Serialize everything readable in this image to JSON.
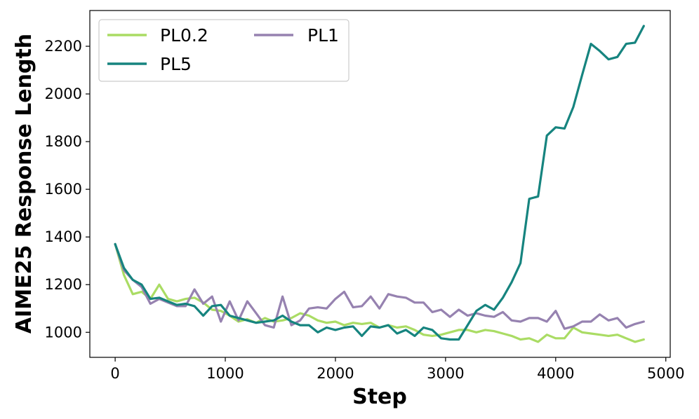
{
  "chart_data": {
    "type": "line",
    "title": "",
    "xlabel": "Step",
    "ylabel": "AIME25 Response Length",
    "xlim": [
      -230,
      5040
    ],
    "ylim": [
      895,
      2350
    ],
    "xticks": [
      0,
      1000,
      2000,
      3000,
      4000,
      5000
    ],
    "yticks": [
      1000,
      1200,
      1400,
      1600,
      1800,
      2000,
      2200
    ],
    "grid": false,
    "legend_position": "top-left",
    "legend_columns": 2,
    "x": [
      0,
      80,
      160,
      240,
      320,
      400,
      480,
      560,
      640,
      720,
      800,
      880,
      960,
      1040,
      1120,
      1200,
      1280,
      1360,
      1440,
      1520,
      1600,
      1680,
      1760,
      1840,
      1920,
      2000,
      2080,
      2160,
      2240,
      2320,
      2400,
      2480,
      2560,
      2640,
      2720,
      2800,
      2880,
      2960,
      3040,
      3120,
      3200,
      3280,
      3360,
      3440,
      3520,
      3600,
      3680,
      3760,
      3840,
      3920,
      4000,
      4080,
      4160,
      4240,
      4320,
      4400,
      4480,
      4560,
      4640,
      4720,
      4800
    ],
    "series": [
      {
        "name": "PL0.2",
        "color": "#aadc64",
        "values": [
          1370,
          1240,
          1160,
          1170,
          1140,
          1200,
          1140,
          1130,
          1140,
          1145,
          1125,
          1095,
          1090,
          1070,
          1045,
          1055,
          1040,
          1060,
          1045,
          1050,
          1060,
          1080,
          1070,
          1050,
          1040,
          1045,
          1030,
          1040,
          1035,
          1040,
          1020,
          1030,
          1020,
          1025,
          1010,
          990,
          985,
          990,
          1000,
          1010,
          1010,
          1000,
          1010,
          1005,
          995,
          985,
          970,
          975,
          960,
          990,
          975,
          975,
          1020,
          1000,
          995,
          990,
          985,
          990,
          975,
          960,
          970
        ]
      },
      {
        "name": "PL5",
        "color": "#16847f",
        "values": [
          1370,
          1270,
          1220,
          1200,
          1140,
          1145,
          1130,
          1115,
          1120,
          1110,
          1070,
          1110,
          1115,
          1070,
          1060,
          1050,
          1040,
          1045,
          1050,
          1070,
          1045,
          1030,
          1030,
          1000,
          1020,
          1010,
          1020,
          1025,
          985,
          1025,
          1020,
          1030,
          995,
          1010,
          985,
          1020,
          1010,
          975,
          970,
          970,
          1030,
          1090,
          1115,
          1095,
          1145,
          1210,
          1290,
          1560,
          1570,
          1825,
          1860,
          1855,
          1945,
          2080,
          2210,
          2180,
          2145,
          2155,
          2210,
          2215,
          2285
        ]
      },
      {
        "name": "PL1",
        "color": "#9682b0",
        "values": [
          1370,
          1260,
          1220,
          1190,
          1120,
          1140,
          1125,
          1110,
          1110,
          1180,
          1120,
          1150,
          1045,
          1130,
          1050,
          1130,
          1080,
          1030,
          1020,
          1150,
          1030,
          1050,
          1100,
          1105,
          1100,
          1140,
          1170,
          1105,
          1110,
          1150,
          1100,
          1160,
          1150,
          1145,
          1125,
          1125,
          1085,
          1095,
          1065,
          1095,
          1070,
          1080,
          1070,
          1065,
          1085,
          1050,
          1045,
          1060,
          1060,
          1045,
          1090,
          1015,
          1025,
          1045,
          1045,
          1075,
          1050,
          1060,
          1020,
          1035,
          1045
        ]
      }
    ]
  }
}
